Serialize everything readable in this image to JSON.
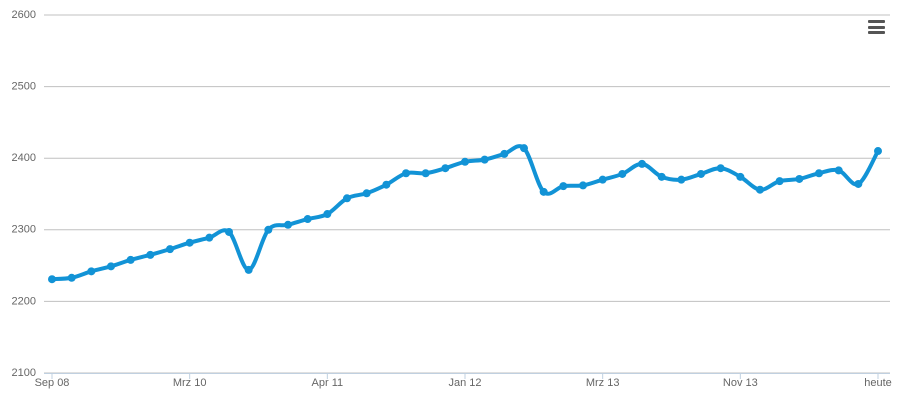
{
  "chart_data": {
    "type": "line",
    "categories": [
      "Sep 08",
      null,
      null,
      null,
      null,
      null,
      null,
      "Mrz 10",
      null,
      null,
      null,
      null,
      null,
      null,
      "Apr 11",
      null,
      null,
      null,
      null,
      null,
      null,
      "Jan 12",
      null,
      null,
      null,
      null,
      null,
      null,
      "Mrz 13",
      null,
      null,
      null,
      null,
      null,
      null,
      "Nov 13",
      null,
      null,
      null,
      null,
      null,
      null,
      "heute"
    ],
    "series": [
      {
        "color": "#1293d6",
        "values": [
          2231,
          2233,
          2242,
          2249,
          2258,
          2265,
          2273,
          2282,
          2289,
          2297,
          2244,
          2300,
          2307,
          2315,
          2322,
          2344,
          2351,
          2363,
          2379,
          2379,
          2386,
          2395,
          2398,
          2406,
          2414,
          2353,
          2361,
          2362,
          2370,
          2378,
          2392,
          2374,
          2370,
          2378,
          2386,
          2374,
          2356,
          2368,
          2371,
          2379,
          2383,
          2364,
          2410
        ]
      }
    ],
    "ylim": [
      2100,
      2600
    ],
    "yticks": [
      2100,
      2200,
      2300,
      2400,
      2500,
      2600
    ],
    "grid": true
  }
}
